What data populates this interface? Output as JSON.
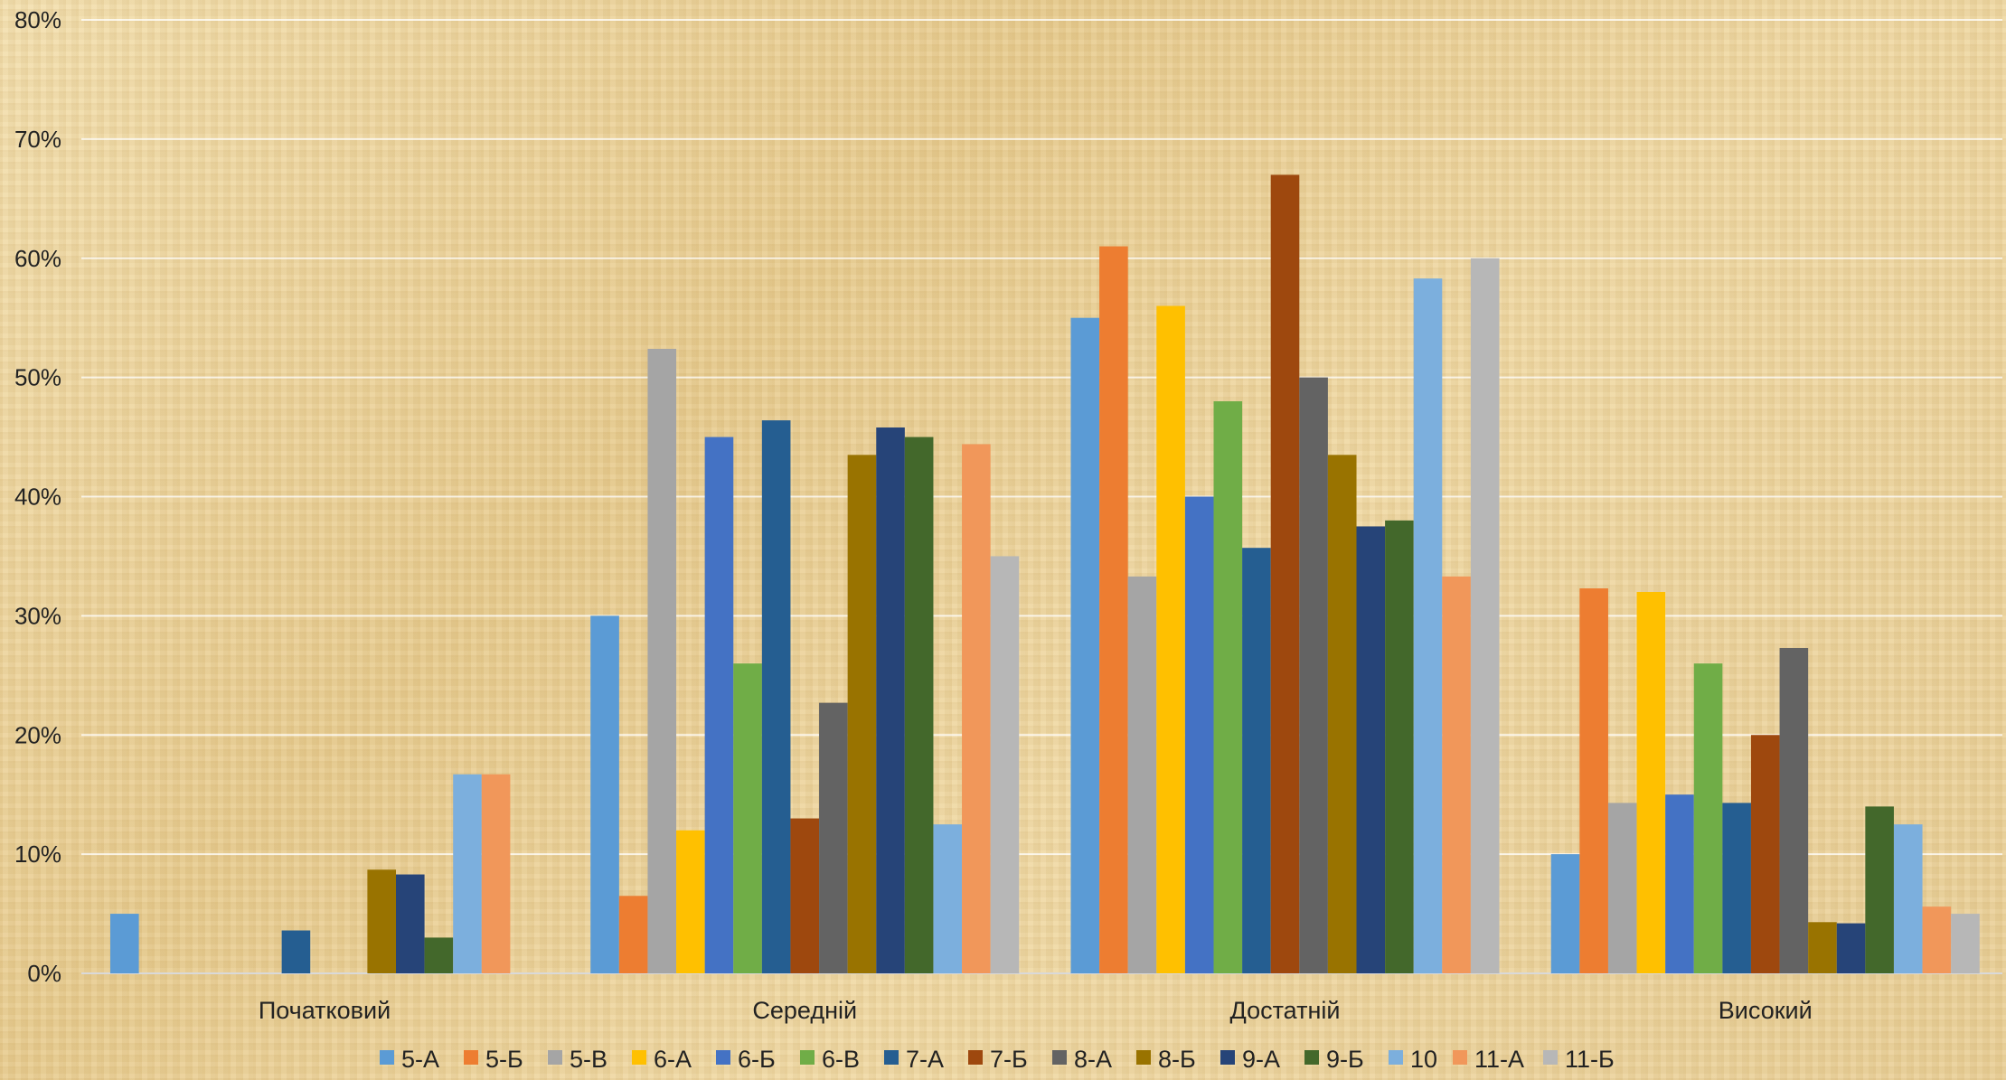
{
  "chart_data": {
    "type": "bar",
    "categories": [
      "Початковий",
      "Середній",
      "Достатній",
      "Високий"
    ],
    "ylim": [
      0,
      80
    ],
    "y_ticks": [
      "0%",
      "10%",
      "20%",
      "30%",
      "40%",
      "50%",
      "60%",
      "70%",
      "80%"
    ],
    "grid": true,
    "legend_position": "bottom",
    "series": [
      {
        "name": "5-А",
        "color": "#5b9bd5",
        "values": [
          5,
          30,
          55,
          10
        ]
      },
      {
        "name": "5-Б",
        "color": "#ed7d31",
        "values": [
          0,
          6.5,
          61,
          32.3
        ]
      },
      {
        "name": "5-В",
        "color": "#a5a5a5",
        "values": [
          0,
          52.4,
          33.3,
          14.3
        ]
      },
      {
        "name": "6-А",
        "color": "#ffc000",
        "values": [
          0,
          12,
          56,
          32
        ]
      },
      {
        "name": "6-Б",
        "color": "#4472c4",
        "values": [
          0,
          45,
          40,
          15
        ]
      },
      {
        "name": "6-В",
        "color": "#70ad47",
        "values": [
          0,
          26,
          48,
          26
        ]
      },
      {
        "name": "7-А",
        "color": "#255e91",
        "values": [
          3.6,
          46.4,
          35.7,
          14.3
        ]
      },
      {
        "name": "7-Б",
        "color": "#9e480e",
        "values": [
          0,
          13,
          67,
          20
        ]
      },
      {
        "name": "8-А",
        "color": "#636363",
        "values": [
          0,
          22.7,
          50,
          27.3
        ]
      },
      {
        "name": "8-Б",
        "color": "#997300",
        "values": [
          8.7,
          43.5,
          43.5,
          4.3
        ]
      },
      {
        "name": "9-А",
        "color": "#264478",
        "values": [
          8.3,
          45.8,
          37.5,
          4.2
        ]
      },
      {
        "name": "9-Б",
        "color": "#43682b",
        "values": [
          3,
          45,
          38,
          14
        ]
      },
      {
        "name": "10",
        "color": "#7cafdd",
        "values": [
          16.7,
          12.5,
          58.3,
          12.5
        ]
      },
      {
        "name": "11-А",
        "color": "#f1975a",
        "values": [
          16.7,
          44.4,
          33.3,
          5.6
        ]
      },
      {
        "name": "11-Б",
        "color": "#b7b7b7",
        "values": [
          0,
          35,
          60,
          5
        ]
      }
    ]
  }
}
